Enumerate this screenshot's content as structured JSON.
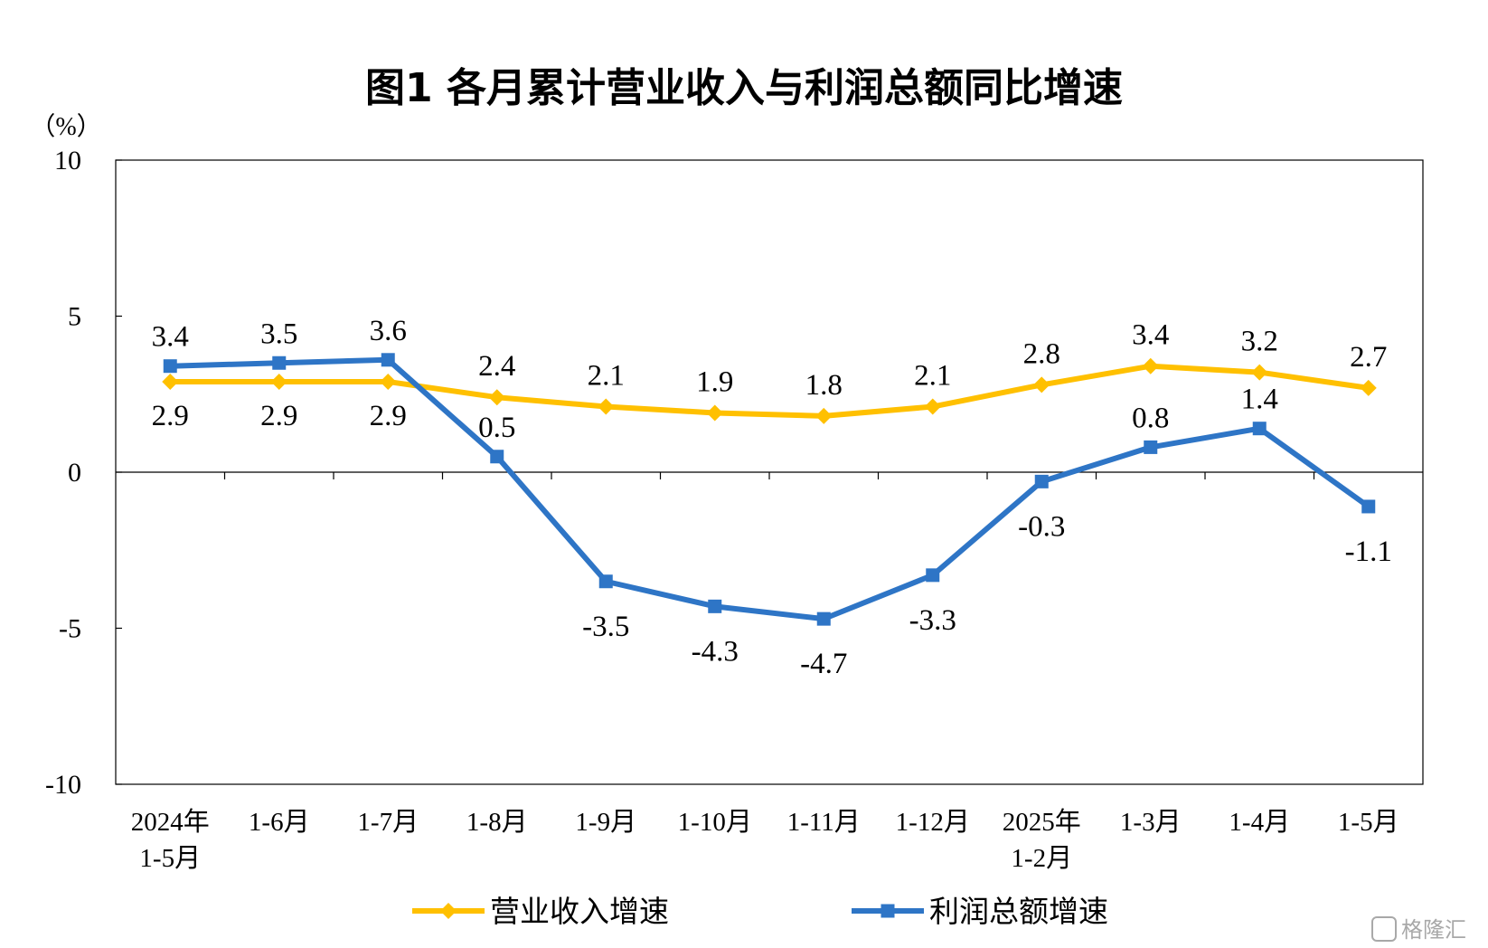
{
  "chart_data": {
    "type": "line",
    "title": "图1  各月累计营业收入与利润总额同比增速",
    "y_unit": "（%）",
    "categories": [
      "2024年\n1-5月",
      "1-6月",
      "1-7月",
      "1-8月",
      "1-9月",
      "1-10月",
      "1-11月",
      "1-12月",
      "2025年\n1-2月",
      "1-3月",
      "1-4月",
      "1-5月"
    ],
    "ylim": [
      -10,
      10
    ],
    "yticks": [
      10,
      5,
      0,
      -5,
      -10
    ],
    "series": [
      {
        "name": "营业收入增速",
        "color": "#FFC000",
        "marker": "diamond",
        "values": [
          2.9,
          2.9,
          2.9,
          2.4,
          2.1,
          1.9,
          1.8,
          2.1,
          2.8,
          3.4,
          3.2,
          2.7
        ],
        "labels": [
          "2.9",
          "2.9",
          "2.9",
          "2.4",
          "2.1",
          "1.9",
          "1.8",
          "2.1",
          "2.8",
          "3.4",
          "3.2",
          "2.7"
        ]
      },
      {
        "name": "利润总额增速",
        "color": "#2E75C6",
        "marker": "square",
        "values": [
          3.4,
          3.5,
          3.6,
          0.5,
          -3.5,
          -4.3,
          -4.7,
          -3.3,
          -0.3,
          0.8,
          1.4,
          -1.1
        ],
        "labels": [
          "3.4",
          "3.5",
          "3.6",
          "0.5",
          "-3.5",
          "-4.3",
          "-4.7",
          "-3.3",
          "-0.3",
          "0.8",
          "1.4",
          "-1.1"
        ]
      }
    ],
    "legend_position": "bottom",
    "grid": false
  },
  "watermark": "格隆汇"
}
